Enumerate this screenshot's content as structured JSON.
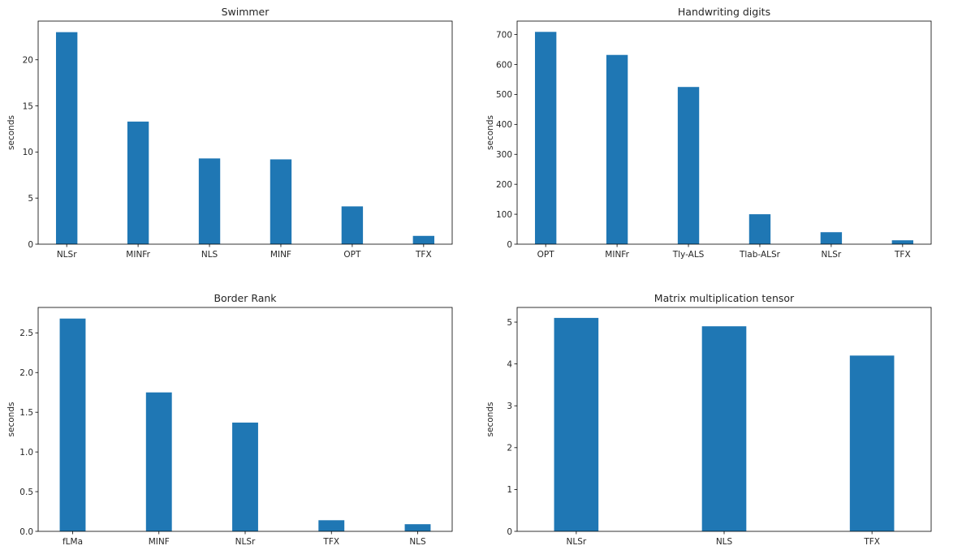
{
  "chart_data": [
    {
      "type": "bar",
      "title": "Swimmer",
      "ylabel": "seconds",
      "xlabel": "",
      "categories": [
        "NLSr",
        "MINFr",
        "NLS",
        "MINF",
        "OPT",
        "TFX"
      ],
      "values": [
        23.0,
        13.3,
        9.3,
        9.2,
        4.1,
        0.9
      ],
      "ylim": [
        0,
        24.2
      ],
      "yticks": [
        0,
        5,
        10,
        15,
        20
      ],
      "yticklabels": [
        "0",
        "5",
        "10",
        "15",
        "20"
      ],
      "color": "#1f77b4"
    },
    {
      "type": "bar",
      "title": "Handwriting digits",
      "ylabel": "seconds",
      "xlabel": "",
      "categories": [
        "OPT",
        "MINFr",
        "Tly-ALS",
        "Tlab-ALSr",
        "NLSr",
        "TFX"
      ],
      "values": [
        709,
        632,
        525,
        100,
        40,
        13
      ],
      "ylim": [
        0,
        745
      ],
      "yticks": [
        0,
        100,
        200,
        300,
        400,
        500,
        600,
        700
      ],
      "yticklabels": [
        "0",
        "100",
        "200",
        "300",
        "400",
        "500",
        "600",
        "700"
      ],
      "color": "#1f77b4"
    },
    {
      "type": "bar",
      "title": "Border Rank",
      "ylabel": "seconds",
      "xlabel": "",
      "categories": [
        "fLMa",
        "MINF",
        "NLSr",
        "TFX",
        "NLS"
      ],
      "values": [
        2.68,
        1.75,
        1.37,
        0.14,
        0.09
      ],
      "ylim": [
        0,
        2.82
      ],
      "yticks": [
        0,
        0.5,
        1.0,
        1.5,
        2.0,
        2.5
      ],
      "yticklabels": [
        "0.0",
        "0.5",
        "1.0",
        "1.5",
        "2.0",
        "2.5"
      ],
      "color": "#1f77b4"
    },
    {
      "type": "bar",
      "title": "Matrix multiplication tensor",
      "ylabel": "seconds",
      "xlabel": "",
      "categories": [
        "NLSr",
        "NLS",
        "TFX"
      ],
      "values": [
        5.1,
        4.9,
        4.2
      ],
      "ylim": [
        0,
        5.35
      ],
      "yticks": [
        0,
        1,
        2,
        3,
        4,
        5
      ],
      "yticklabels": [
        "0",
        "1",
        "2",
        "3",
        "4",
        "5"
      ],
      "color": "#1f77b4"
    }
  ]
}
